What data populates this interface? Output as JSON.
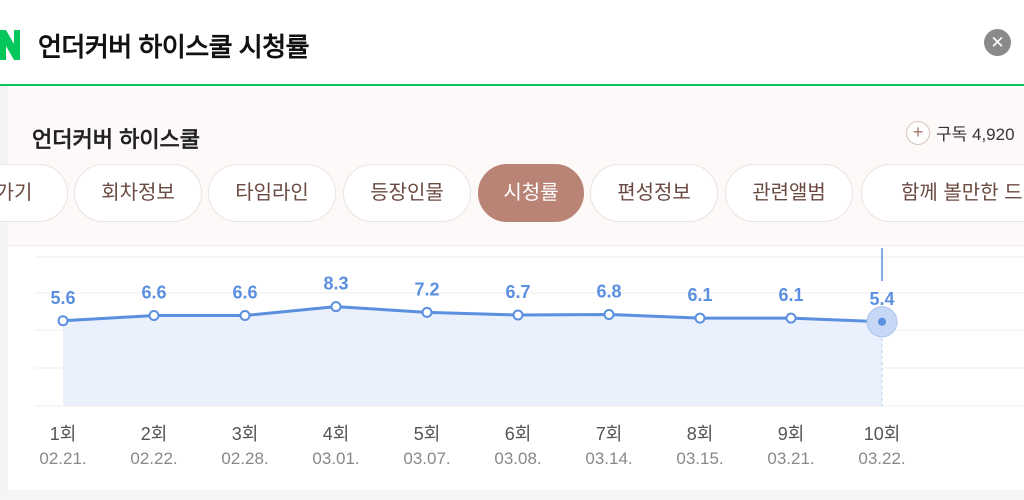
{
  "header": {
    "title": "언더커버 하이스쿨 시청률",
    "close_icon": "close-icon",
    "brand_color": "#03c75a"
  },
  "panel": {
    "show_name": "언더커버 하이스쿨",
    "subscribe_label": "구독 4,920",
    "plus_icon": "plus-icon"
  },
  "tabs": [
    {
      "label": "가기",
      "active": false
    },
    {
      "label": "회차정보",
      "active": false
    },
    {
      "label": "타임라인",
      "active": false
    },
    {
      "label": "등장인물",
      "active": false
    },
    {
      "label": "시청률",
      "active": true
    },
    {
      "label": "편성정보",
      "active": false
    },
    {
      "label": "관련앨범",
      "active": false
    },
    {
      "label": "함께 볼만한 드라",
      "active": false
    }
  ],
  "chart_data": {
    "type": "line",
    "categories": [
      "1회",
      "2회",
      "3회",
      "4회",
      "5회",
      "6회",
      "7회",
      "8회",
      "9회",
      "10회"
    ],
    "dates": [
      "02.21.",
      "02.22.",
      "02.28.",
      "03.01.",
      "03.07.",
      "03.08.",
      "03.14.",
      "03.15.",
      "03.21.",
      "03.22."
    ],
    "values": [
      5.6,
      6.6,
      6.6,
      8.3,
      7.2,
      6.7,
      6.8,
      6.1,
      6.1,
      5.4
    ],
    "highlighted_index": 9,
    "line_color": "#5b8fe0",
    "fill_color": "#eaf1fc",
    "grid": true
  }
}
